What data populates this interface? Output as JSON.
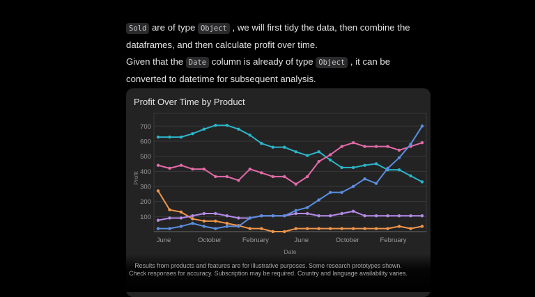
{
  "prose": {
    "p1": [
      {
        "type": "code",
        "text": "Sold"
      },
      {
        "type": "text",
        "text": " are of type "
      },
      {
        "type": "code",
        "text": "Object"
      },
      {
        "type": "text",
        "text": " , we will first tidy the data, then combine the dataframes, and then calculate profit over time."
      }
    ],
    "p2": [
      {
        "type": "text",
        "text": "Given that the "
      },
      {
        "type": "code",
        "text": "Date"
      },
      {
        "type": "text",
        "text": " column is already of type "
      },
      {
        "type": "code",
        "text": "Object"
      },
      {
        "type": "text",
        "text": " , it can be converted to datetime for subsequent analysis."
      }
    ]
  },
  "card": {
    "title": "Profit Over Time by Product"
  },
  "chart_data": {
    "type": "line",
    "title": "Profit Over Time by Product",
    "xlabel": "Date",
    "ylabel": "Profit",
    "ylim": [
      0,
      750
    ],
    "yticks": [
      100,
      200,
      300,
      400,
      500,
      600,
      700
    ],
    "xtick_labels": [
      {
        "index": 0,
        "label": "June"
      },
      {
        "index": 4,
        "label": "October"
      },
      {
        "index": 8,
        "label": "February"
      },
      {
        "index": 12,
        "label": "June"
      },
      {
        "index": 16,
        "label": "October"
      },
      {
        "index": 20,
        "label": "February"
      }
    ],
    "grid": true,
    "n_points": 24,
    "series": [
      {
        "name": "teal",
        "color": "#2bb5c8",
        "values": [
          627,
          627,
          627,
          650,
          680,
          705,
          705,
          680,
          640,
          585,
          560,
          560,
          530,
          505,
          530,
          475,
          425,
          425,
          440,
          450,
          410,
          410,
          370,
          330
        ]
      },
      {
        "name": "pink",
        "color": "#e36aa8",
        "values": [
          440,
          420,
          440,
          415,
          415,
          365,
          365,
          340,
          415,
          390,
          365,
          365,
          315,
          365,
          465,
          510,
          565,
          590,
          565,
          565,
          565,
          540,
          565,
          590
        ]
      },
      {
        "name": "orange",
        "color": "#f0954a",
        "values": [
          270,
          145,
          130,
          85,
          70,
          70,
          55,
          40,
          20,
          20,
          0,
          0,
          20,
          20,
          20,
          20,
          20,
          20,
          20,
          20,
          20,
          35,
          20,
          35
        ]
      },
      {
        "name": "purple",
        "color": "#b58be8",
        "values": [
          75,
          90,
          90,
          105,
          120,
          120,
          105,
          90,
          90,
          105,
          105,
          105,
          120,
          120,
          105,
          105,
          120,
          135,
          105,
          105,
          105,
          105,
          105,
          105
        ]
      },
      {
        "name": "blue",
        "color": "#5b8ee0",
        "values": [
          20,
          20,
          35,
          55,
          35,
          20,
          35,
          35,
          90,
          105,
          105,
          105,
          140,
          160,
          210,
          260,
          260,
          300,
          350,
          320,
          420,
          490,
          580,
          700
        ]
      }
    ]
  },
  "footer": {
    "line1": "Results from products and features are for illustrative purposes. Some research prototypes shown.",
    "line2": "Check responses for accuracy. Subscription may be required. Country and language availability varies."
  }
}
